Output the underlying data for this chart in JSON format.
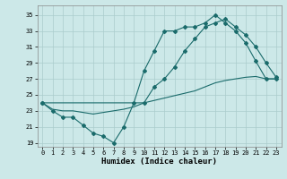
{
  "xlabel": "Humidex (Indice chaleur)",
  "bg_color": "#cce8e8",
  "grid_color": "#aacccc",
  "line_color": "#1a6b6b",
  "xlim": [
    -0.5,
    23.5
  ],
  "ylim": [
    18.5,
    36.2
  ],
  "xticks": [
    0,
    1,
    2,
    3,
    4,
    5,
    6,
    7,
    8,
    9,
    10,
    11,
    12,
    13,
    14,
    15,
    16,
    17,
    18,
    19,
    20,
    21,
    22,
    23
  ],
  "yticks": [
    19,
    21,
    23,
    25,
    27,
    29,
    31,
    33,
    35
  ],
  "line1_x": [
    0,
    1,
    2,
    3,
    4,
    5,
    6,
    7,
    8,
    9,
    10,
    11,
    12,
    13,
    14,
    15,
    16,
    17,
    18,
    19,
    20,
    21,
    22,
    23
  ],
  "line1_y": [
    24,
    23,
    22.2,
    22.2,
    21.2,
    20.2,
    19.8,
    19.0,
    21.0,
    24.0,
    28.0,
    30.5,
    33.0,
    33.0,
    33.5,
    33.5,
    34.0,
    35.0,
    34.0,
    33.0,
    31.5,
    29.2,
    27.0,
    27.0
  ],
  "line2_x": [
    0,
    10,
    11,
    12,
    13,
    14,
    15,
    16,
    17,
    18,
    19,
    20,
    21,
    22,
    23
  ],
  "line2_y": [
    24,
    24.0,
    26.0,
    27.0,
    28.5,
    30.5,
    32.0,
    33.5,
    34.0,
    34.5,
    33.5,
    32.5,
    31.0,
    29.0,
    27.2
  ],
  "line3_x": [
    0,
    1,
    2,
    3,
    4,
    5,
    6,
    7,
    8,
    9,
    10,
    11,
    12,
    13,
    14,
    15,
    16,
    17,
    18,
    19,
    20,
    21,
    22,
    23
  ],
  "line3_y": [
    24.0,
    23.2,
    23.0,
    23.0,
    22.8,
    22.6,
    22.8,
    23.0,
    23.2,
    23.5,
    24.0,
    24.3,
    24.6,
    24.9,
    25.2,
    25.5,
    26.0,
    26.5,
    26.8,
    27.0,
    27.2,
    27.3,
    27.0,
    27.0
  ]
}
